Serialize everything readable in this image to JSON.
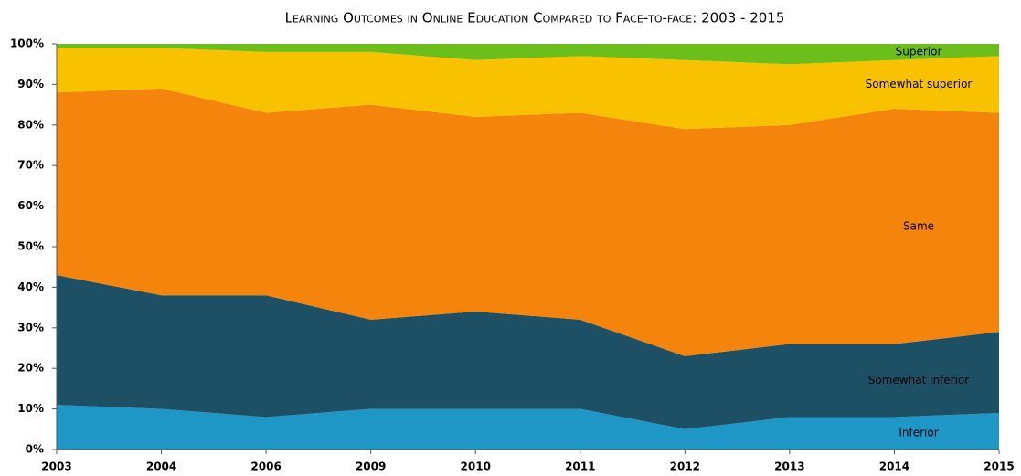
{
  "chart_data": {
    "type": "stacked_area",
    "title": "Learning Outcomes in Online Education Compared to Face-to-face: 2003 - 2015",
    "categories": [
      "2003",
      "2004",
      "2006",
      "2009",
      "2010",
      "2011",
      "2012",
      "2013",
      "2014",
      "2015"
    ],
    "series": [
      {
        "name": "Inferior",
        "color": "#1f97c6",
        "values": [
          11,
          10,
          8,
          10,
          10,
          10,
          5,
          8,
          8,
          9
        ]
      },
      {
        "name": "Somewhat inferior",
        "color": "#1e5065",
        "values": [
          32,
          28,
          30,
          22,
          24,
          22,
          18,
          18,
          18,
          20
        ]
      },
      {
        "name": "Same",
        "color": "#f5840c",
        "values": [
          45,
          51,
          45,
          53,
          48,
          51,
          56,
          54,
          58,
          54
        ]
      },
      {
        "name": "Somewhat superior",
        "color": "#f8c200",
        "values": [
          11,
          10,
          15,
          13,
          14,
          14,
          17,
          15,
          12,
          14
        ]
      },
      {
        "name": "Superior",
        "color": "#6cbf1a",
        "values": [
          1,
          1,
          2,
          2,
          4,
          3,
          4,
          5,
          4,
          3
        ]
      }
    ],
    "ylim": [
      0,
      100
    ],
    "yticks": [
      {
        "value": 0,
        "label": "0%"
      },
      {
        "value": 10,
        "label": "10%"
      },
      {
        "value": 20,
        "label": "20%"
      },
      {
        "value": 30,
        "label": "30%"
      },
      {
        "value": 40,
        "label": "40%"
      },
      {
        "value": 50,
        "label": "50%"
      },
      {
        "value": 60,
        "label": "60%"
      },
      {
        "value": 70,
        "label": "70%"
      },
      {
        "value": 80,
        "label": "80%"
      },
      {
        "value": 90,
        "label": "90%"
      },
      {
        "value": 100,
        "label": "100%"
      }
    ],
    "grid": false
  }
}
